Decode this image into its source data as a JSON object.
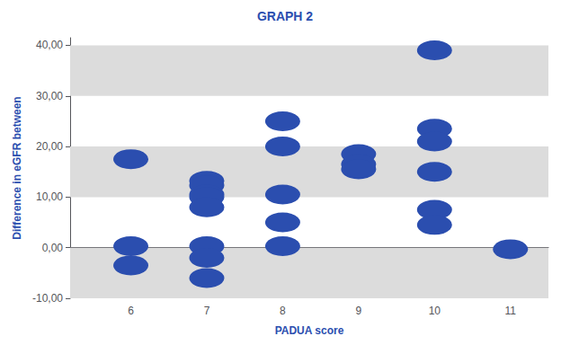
{
  "chart_data": {
    "type": "scatter",
    "title": "GRAPH 2",
    "x_label": "PADUA score",
    "y_label": "Difference in eGFR between",
    "x": [
      6,
      6,
      6,
      7,
      7,
      7,
      7,
      7,
      7,
      7,
      7,
      8,
      8,
      8,
      8,
      8,
      9,
      9,
      9,
      10,
      10,
      10,
      10,
      10,
      10,
      11
    ],
    "values": [
      17.5,
      0.3,
      -3.5,
      13.2,
      12.3,
      10.5,
      10.0,
      8.0,
      0.3,
      -2.0,
      -6.0,
      25.0,
      20.0,
      10.5,
      5.0,
      0.3,
      18.5,
      16.5,
      15.5,
      39.0,
      23.5,
      21.0,
      15.0,
      7.5,
      4.5,
      -0.3
    ],
    "color": "#2B4EAF",
    "marker": "ellipse",
    "xlim": [
      5.2,
      11.5
    ],
    "xticks": [
      6,
      7,
      8,
      9,
      10,
      11
    ],
    "ylim": [
      -10.0,
      41.5
    ],
    "yticks": [
      {
        "value": -10,
        "label": "-10,00"
      },
      {
        "value": 0,
        "label": "0,00"
      },
      {
        "value": 10,
        "label": "10,00"
      },
      {
        "value": 20,
        "label": "20,00"
      },
      {
        "value": 30,
        "label": "30,00"
      },
      {
        "value": 40,
        "label": "40,00"
      }
    ],
    "grid": false
  }
}
